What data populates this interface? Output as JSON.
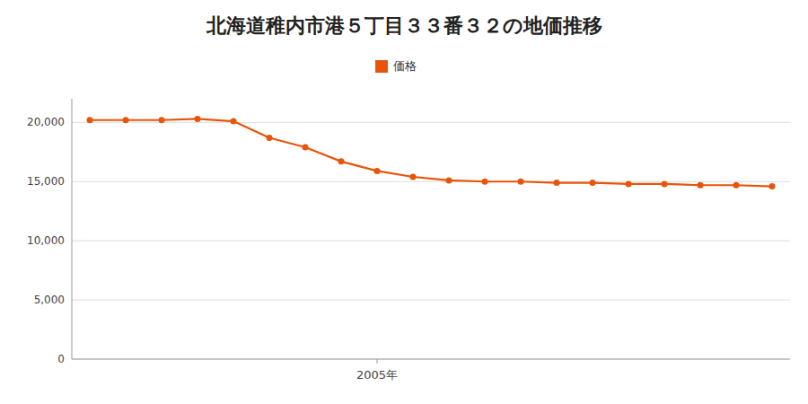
{
  "chart_data": {
    "type": "line",
    "title": "北海道稚内市港５丁目３３番３２の地価推移",
    "x": [
      1997,
      1998,
      1999,
      2000,
      2001,
      2002,
      2003,
      2004,
      2005,
      2006,
      2007,
      2008,
      2009,
      2010,
      2011,
      2012,
      2013,
      2014,
      2015,
      2016
    ],
    "series": [
      {
        "name": "価格",
        "color": "#e8540a",
        "marker": "circle",
        "values": [
          20200,
          20200,
          20200,
          20300,
          20100,
          18700,
          17900,
          16700,
          15900,
          15400,
          15100,
          15000,
          15000,
          14900,
          14900,
          14800,
          14800,
          14700,
          14700,
          14600
        ]
      }
    ],
    "xlim": [
      1996.5,
      2016.5
    ],
    "xticks": [
      {
        "value": 2005,
        "label": "2005年"
      }
    ],
    "ylim": [
      0,
      22000
    ],
    "yticks": [
      0,
      {
        "value": 5000,
        "label": "5,000"
      },
      {
        "value": 10000,
        "label": "10,000"
      },
      {
        "value": 15000,
        "label": "15,000"
      },
      {
        "value": 20000,
        "label": "20,000"
      }
    ],
    "grid": true,
    "legend": "top"
  }
}
